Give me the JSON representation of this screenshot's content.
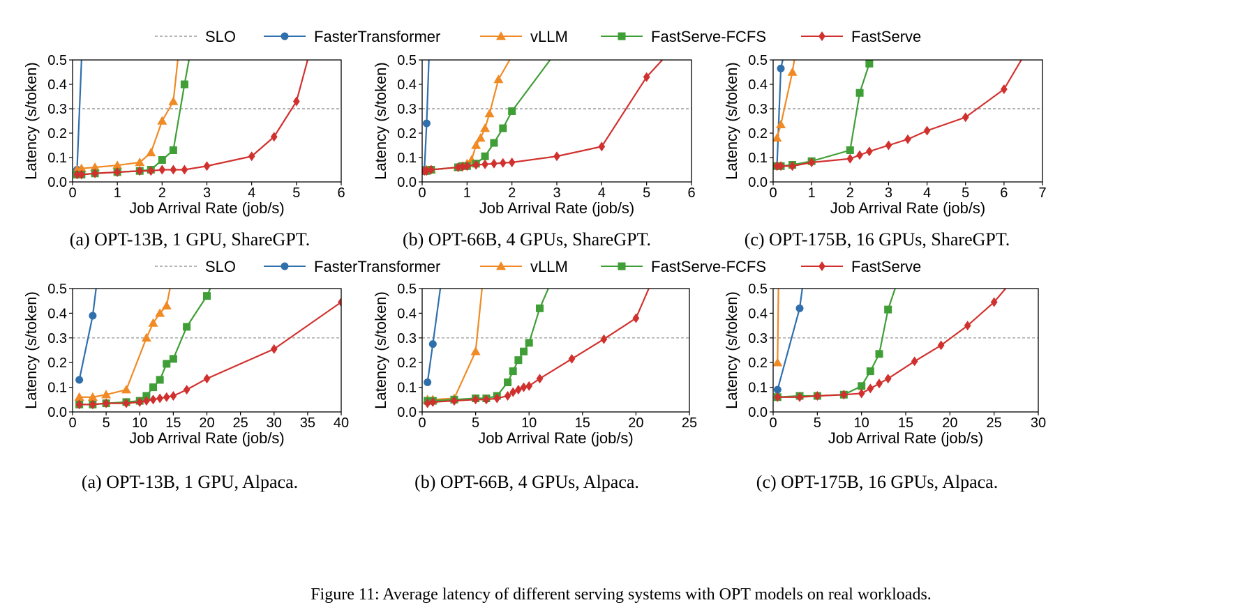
{
  "figure_caption": "Figure 11: Average latency of different serving systems with OPT models on real workloads.",
  "colors": {
    "SLO": "#888888",
    "FasterTransformer": "#2f6fac",
    "vLLM": "#f08a24",
    "FastServe-FCFS": "#3f9e36",
    "FastServe": "#d1312e"
  },
  "legends": [
    {
      "items": [
        {
          "label": "SLO",
          "style": "dashed",
          "marker": "none"
        },
        {
          "label": "FasterTransformer",
          "style": "solid",
          "marker": "circle"
        },
        {
          "label": "vLLM",
          "style": "solid",
          "marker": "triangle"
        },
        {
          "label": "FastServe-FCFS",
          "style": "solid",
          "marker": "square"
        },
        {
          "label": "FastServe",
          "style": "solid",
          "marker": "diamond"
        }
      ]
    },
    {
      "items": [
        {
          "label": "SLO",
          "style": "dashed",
          "marker": "none"
        },
        {
          "label": "FasterTransformer",
          "style": "solid",
          "marker": "circle"
        },
        {
          "label": "vLLM",
          "style": "solid",
          "marker": "triangle"
        },
        {
          "label": "FastServe-FCFS",
          "style": "solid",
          "marker": "square"
        },
        {
          "label": "FastServe",
          "style": "solid",
          "marker": "diamond"
        }
      ]
    }
  ],
  "chart_data": [
    {
      "type": "line",
      "caption": "(a) OPT-13B, 1 GPU, ShareGPT.",
      "xlabel": "Job Arrival Rate (job/s)",
      "ylabel": "Latency (s/token)",
      "xlim": [
        0,
        6
      ],
      "ylim": [
        0,
        0.5
      ],
      "xticks": [
        0,
        1,
        2,
        3,
        4,
        5,
        6
      ],
      "yticks": [
        0.0,
        0.1,
        0.2,
        0.3,
        0.4,
        0.5
      ],
      "slo": 0.3,
      "series": [
        {
          "name": "FasterTransformer",
          "marker": "circle",
          "x": [
            0.1,
            0.2
          ],
          "y": [
            0.05,
            0.5
          ]
        },
        {
          "name": "vLLM",
          "marker": "triangle",
          "x": [
            0.1,
            0.2,
            0.5,
            1.0,
            1.5,
            1.75,
            2.0,
            2.25,
            2.35
          ],
          "y": [
            0.05,
            0.055,
            0.06,
            0.068,
            0.08,
            0.12,
            0.25,
            0.33,
            0.5
          ]
        },
        {
          "name": "FastServe-FCFS",
          "marker": "square",
          "x": [
            0.1,
            0.2,
            0.5,
            1.0,
            1.5,
            1.75,
            2.0,
            2.25,
            2.5,
            2.6
          ],
          "y": [
            0.03,
            0.03,
            0.035,
            0.04,
            0.045,
            0.05,
            0.09,
            0.13,
            0.4,
            0.5
          ]
        },
        {
          "name": "FastServe",
          "marker": "diamond",
          "x": [
            0.1,
            0.2,
            0.5,
            1.0,
            1.5,
            1.75,
            2.0,
            2.25,
            2.5,
            3.0,
            4.0,
            4.5,
            5.0,
            5.25
          ],
          "y": [
            0.03,
            0.03,
            0.035,
            0.04,
            0.045,
            0.045,
            0.05,
            0.05,
            0.05,
            0.065,
            0.105,
            0.185,
            0.33,
            0.5
          ]
        }
      ]
    },
    {
      "type": "line",
      "caption": "(b) OPT-66B, 4 GPUs, ShareGPT.",
      "xlabel": "Job Arrival Rate (job/s)",
      "ylabel": "Latency (s/token)",
      "xlim": [
        0,
        6
      ],
      "ylim": [
        0,
        0.5
      ],
      "xticks": [
        0,
        1,
        2,
        3,
        4,
        5,
        6
      ],
      "yticks": [
        0.0,
        0.1,
        0.2,
        0.3,
        0.4,
        0.5
      ],
      "slo": 0.3,
      "series": [
        {
          "name": "FasterTransformer",
          "marker": "circle",
          "x": [
            0.05,
            0.1,
            0.15
          ],
          "y": [
            0.05,
            0.24,
            0.5
          ]
        },
        {
          "name": "vLLM",
          "marker": "triangle",
          "x": [
            0.05,
            0.1,
            0.2,
            0.8,
            0.9,
            1.0,
            1.1,
            1.2,
            1.3,
            1.4,
            1.5,
            1.7,
            1.95
          ],
          "y": [
            0.045,
            0.05,
            0.05,
            0.06,
            0.065,
            0.075,
            0.09,
            0.15,
            0.18,
            0.22,
            0.28,
            0.42,
            0.5
          ]
        },
        {
          "name": "FastServe-FCFS",
          "marker": "square",
          "x": [
            0.05,
            0.1,
            0.2,
            0.8,
            0.9,
            1.0,
            1.2,
            1.4,
            1.6,
            1.8,
            2.0,
            2.85
          ],
          "y": [
            0.045,
            0.045,
            0.05,
            0.06,
            0.065,
            0.065,
            0.075,
            0.105,
            0.16,
            0.22,
            0.29,
            0.5
          ]
        },
        {
          "name": "FastServe",
          "marker": "diamond",
          "x": [
            0.05,
            0.1,
            0.2,
            0.8,
            0.9,
            1.0,
            1.2,
            1.4,
            1.6,
            1.8,
            2.0,
            3.0,
            4.0,
            5.0,
            5.35
          ],
          "y": [
            0.045,
            0.045,
            0.05,
            0.06,
            0.062,
            0.065,
            0.07,
            0.072,
            0.075,
            0.078,
            0.08,
            0.105,
            0.145,
            0.43,
            0.5
          ]
        }
      ]
    },
    {
      "type": "line",
      "caption": "(c) OPT-175B, 16 GPUs, ShareGPT.",
      "xlabel": "Job Arrival Rate (job/s)",
      "ylabel": "Latency (s/token)",
      "xlim": [
        0,
        7
      ],
      "ylim": [
        0,
        0.5
      ],
      "xticks": [
        0,
        1,
        2,
        3,
        4,
        5,
        6,
        7
      ],
      "yticks": [
        0.0,
        0.1,
        0.2,
        0.3,
        0.4,
        0.5
      ],
      "slo": 0.3,
      "series": [
        {
          "name": "FasterTransformer",
          "marker": "circle",
          "x": [
            0.1,
            0.2,
            0.25
          ],
          "y": [
            0.065,
            0.465,
            0.5
          ]
        },
        {
          "name": "vLLM",
          "marker": "triangle",
          "x": [
            0.1,
            0.2,
            0.5,
            0.55
          ],
          "y": [
            0.18,
            0.235,
            0.45,
            0.5
          ]
        },
        {
          "name": "FastServe-FCFS",
          "marker": "square",
          "x": [
            0.1,
            0.2,
            0.5,
            1.0,
            2.0,
            2.25,
            2.5
          ],
          "y": [
            0.065,
            0.065,
            0.07,
            0.085,
            0.13,
            0.365,
            0.485
          ]
        },
        {
          "name": "FastServe",
          "marker": "diamond",
          "x": [
            0.1,
            0.2,
            0.5,
            1.0,
            2.0,
            2.25,
            2.5,
            3.0,
            3.5,
            4.0,
            5.0,
            6.0,
            6.45
          ],
          "y": [
            0.065,
            0.065,
            0.065,
            0.08,
            0.095,
            0.11,
            0.125,
            0.15,
            0.175,
            0.21,
            0.265,
            0.38,
            0.5
          ]
        }
      ]
    },
    {
      "type": "line",
      "caption": "(a) OPT-13B, 1 GPU, Alpaca.",
      "xlabel": "Job Arrival Rate (job/s)",
      "ylabel": "Latency (s/token)",
      "xlim": [
        0,
        40
      ],
      "ylim": [
        0,
        0.5
      ],
      "xticks": [
        0,
        5,
        10,
        15,
        20,
        25,
        30,
        35,
        40
      ],
      "yticks": [
        0.0,
        0.1,
        0.2,
        0.3,
        0.4,
        0.5
      ],
      "slo": 0.3,
      "series": [
        {
          "name": "FasterTransformer",
          "marker": "circle",
          "x": [
            1,
            3,
            3.5
          ],
          "y": [
            0.13,
            0.39,
            0.5
          ]
        },
        {
          "name": "vLLM",
          "marker": "triangle",
          "x": [
            1,
            3,
            5,
            8,
            11,
            12,
            13,
            14,
            14.5
          ],
          "y": [
            0.06,
            0.06,
            0.07,
            0.09,
            0.3,
            0.36,
            0.4,
            0.43,
            0.5
          ]
        },
        {
          "name": "FastServe-FCFS",
          "marker": "square",
          "x": [
            1,
            3,
            5,
            8,
            10,
            11,
            12,
            13,
            14,
            15,
            17,
            20,
            20.5
          ],
          "y": [
            0.03,
            0.03,
            0.035,
            0.04,
            0.045,
            0.065,
            0.1,
            0.13,
            0.195,
            0.215,
            0.345,
            0.47,
            0.5
          ]
        },
        {
          "name": "FastServe",
          "marker": "diamond",
          "x": [
            1,
            3,
            5,
            8,
            10,
            11,
            12,
            13,
            14,
            15,
            17,
            20,
            30,
            40
          ],
          "y": [
            0.03,
            0.03,
            0.035,
            0.035,
            0.04,
            0.045,
            0.05,
            0.055,
            0.06,
            0.065,
            0.09,
            0.135,
            0.255,
            0.445
          ]
        }
      ]
    },
    {
      "type": "line",
      "caption": "(b) OPT-66B, 4 GPUs, Alpaca.",
      "xlabel": "Job Arrival Rate (job/s)",
      "ylabel": "Latency (s/token)",
      "xlim": [
        0,
        25
      ],
      "ylim": [
        0,
        0.5
      ],
      "xticks": [
        0,
        5,
        10,
        15,
        20,
        25
      ],
      "yticks": [
        0.0,
        0.1,
        0.2,
        0.3,
        0.4,
        0.5
      ],
      "slo": 0.3,
      "series": [
        {
          "name": "FasterTransformer",
          "marker": "circle",
          "x": [
            0.5,
            1,
            1.7
          ],
          "y": [
            0.12,
            0.275,
            0.5
          ]
        },
        {
          "name": "vLLM",
          "marker": "triangle",
          "x": [
            0.5,
            1,
            3,
            5,
            5.6
          ],
          "y": [
            0.05,
            0.05,
            0.055,
            0.245,
            0.5
          ]
        },
        {
          "name": "FastServe-FCFS",
          "marker": "square",
          "x": [
            0.5,
            1,
            3,
            5,
            6,
            7,
            8,
            8.5,
            9,
            9.5,
            10,
            11,
            11.8
          ],
          "y": [
            0.045,
            0.045,
            0.05,
            0.055,
            0.055,
            0.065,
            0.12,
            0.165,
            0.21,
            0.245,
            0.28,
            0.42,
            0.5
          ]
        },
        {
          "name": "FastServe",
          "marker": "diamond",
          "x": [
            0.5,
            1,
            3,
            5,
            6,
            7,
            8,
            8.5,
            9,
            9.5,
            10,
            11,
            14,
            17,
            20,
            21.2
          ],
          "y": [
            0.035,
            0.04,
            0.045,
            0.05,
            0.05,
            0.055,
            0.065,
            0.08,
            0.09,
            0.1,
            0.105,
            0.135,
            0.215,
            0.295,
            0.38,
            0.5
          ]
        }
      ]
    },
    {
      "type": "line",
      "caption": "(c) OPT-175B, 16 GPUs, Alpaca.",
      "xlabel": "Job Arrival Rate (job/s)",
      "ylabel": "Latency (s/token)",
      "xlim": [
        0,
        30
      ],
      "ylim": [
        0,
        0.5
      ],
      "xticks": [
        0,
        5,
        10,
        15,
        20,
        25,
        30
      ],
      "yticks": [
        0.0,
        0.1,
        0.2,
        0.3,
        0.4,
        0.5
      ],
      "slo": 0.3,
      "series": [
        {
          "name": "FasterTransformer",
          "marker": "circle",
          "x": [
            0.5,
            3,
            3.3
          ],
          "y": [
            0.09,
            0.42,
            0.5
          ]
        },
        {
          "name": "vLLM",
          "marker": "triangle",
          "x": [
            0.5,
            0.6
          ],
          "y": [
            0.2,
            0.5
          ]
        },
        {
          "name": "FastServe-FCFS",
          "marker": "square",
          "x": [
            0.5,
            3,
            5,
            8,
            10,
            11,
            12,
            13,
            13.8
          ],
          "y": [
            0.06,
            0.065,
            0.065,
            0.07,
            0.105,
            0.165,
            0.235,
            0.415,
            0.5
          ]
        },
        {
          "name": "FastServe",
          "marker": "diamond",
          "x": [
            0.5,
            3,
            5,
            8,
            10,
            11,
            12,
            13,
            16,
            19,
            22,
            25,
            26.3
          ],
          "y": [
            0.06,
            0.06,
            0.065,
            0.07,
            0.075,
            0.095,
            0.115,
            0.135,
            0.205,
            0.27,
            0.35,
            0.445,
            0.5
          ]
        }
      ]
    }
  ]
}
